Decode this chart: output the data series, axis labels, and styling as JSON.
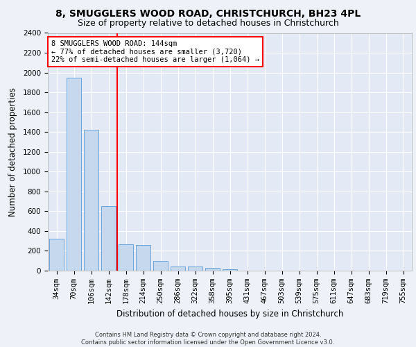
{
  "title_line1": "8, SMUGGLERS WOOD ROAD, CHRISTCHURCH, BH23 4PL",
  "title_line2": "Size of property relative to detached houses in Christchurch",
  "xlabel": "Distribution of detached houses by size in Christchurch",
  "ylabel": "Number of detached properties",
  "footnote": "Contains HM Land Registry data © Crown copyright and database right 2024.\nContains public sector information licensed under the Open Government Licence v3.0.",
  "bar_labels": [
    "34sqm",
    "70sqm",
    "106sqm",
    "142sqm",
    "178sqm",
    "214sqm",
    "250sqm",
    "286sqm",
    "322sqm",
    "358sqm",
    "395sqm",
    "431sqm",
    "467sqm",
    "503sqm",
    "539sqm",
    "575sqm",
    "611sqm",
    "647sqm",
    "683sqm",
    "719sqm",
    "755sqm"
  ],
  "bar_values": [
    320,
    1950,
    1420,
    650,
    265,
    260,
    95,
    45,
    40,
    25,
    15,
    0,
    0,
    0,
    0,
    0,
    0,
    0,
    0,
    0,
    0
  ],
  "bar_color": "#c5d8ed",
  "bar_edge_color": "#5b9bd5",
  "annotation_line1": "8 SMUGGLERS WOOD ROAD: 144sqm",
  "annotation_line2": "← 77% of detached houses are smaller (3,720)",
  "annotation_line3": "22% of semi-detached houses are larger (1,064) →",
  "annotation_box_color": "white",
  "annotation_box_edge": "red",
  "vline_color": "red",
  "vline_x": 3.5,
  "ylim": [
    0,
    2400
  ],
  "yticks": [
    0,
    200,
    400,
    600,
    800,
    1000,
    1200,
    1400,
    1600,
    1800,
    2000,
    2200,
    2400
  ],
  "background_color": "#eef2f8",
  "plot_bg_color": "#e4eaf5",
  "grid_color": "white",
  "title1_fontsize": 10,
  "title2_fontsize": 9,
  "xlabel_fontsize": 8.5,
  "ylabel_fontsize": 8.5,
  "annot_fontsize": 7.5,
  "tick_fontsize": 7.5,
  "footnote_fontsize": 6.0
}
